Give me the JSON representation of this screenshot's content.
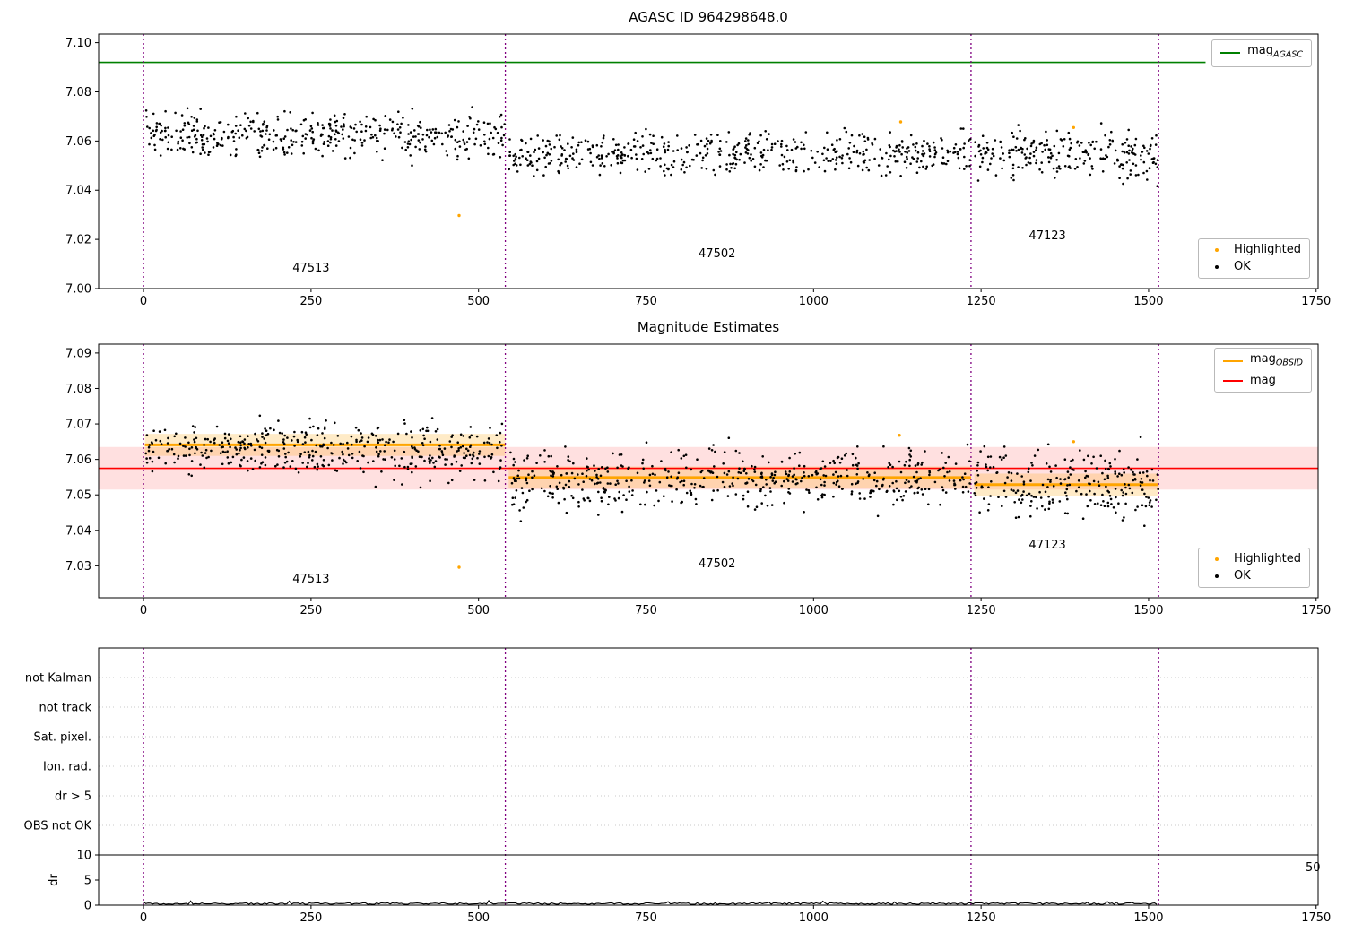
{
  "colors": {
    "ok": "#000000",
    "highlighted": "#ffa500",
    "agasc": "#008000",
    "mag": "#ff0000",
    "obsid": "#ffa500",
    "vline": "#800080",
    "grid": "#c8c8c8",
    "spine": "#000000",
    "background": "#ffffff"
  },
  "chart_data": [
    {
      "type": "scatter",
      "title": "AGASC ID 964298648.0",
      "xlim": [
        -67,
        1753
      ],
      "ylim": [
        7.0,
        7.1035
      ],
      "xticks": [
        0,
        250,
        500,
        750,
        1000,
        1250,
        1500,
        1750
      ],
      "yticks": [
        7.0,
        7.02,
        7.04,
        7.06,
        7.08,
        7.1
      ],
      "ytick_labels": [
        "7.00",
        "7.02",
        "7.04",
        "7.06",
        "7.08",
        "7.10"
      ],
      "agasc_mag": 7.092,
      "agasc_line_x": [
        -67,
        1585
      ],
      "vlines": [
        0,
        540,
        1235,
        1515
      ],
      "series": [
        {
          "obsid": "47513",
          "x0": 2,
          "x1": 540,
          "n": 430,
          "mean": 7.0625,
          "sd": 0.0045,
          "seed": 11,
          "label_x": 250,
          "label_y": 7.007
        },
        {
          "obsid": "47502",
          "x0": 545,
          "x1": 1235,
          "n": 520,
          "mean": 7.0548,
          "sd": 0.004,
          "seed": 22,
          "label_x": 856,
          "label_y": 7.0128
        },
        {
          "obsid": "47123",
          "x0": 1240,
          "x1": 1515,
          "n": 235,
          "mean": 7.0542,
          "sd": 0.0048,
          "seed": 33,
          "label_x": 1349,
          "label_y": 7.02
        }
      ],
      "highlighted": [
        [
          471,
          7.0297
        ],
        [
          1130,
          7.0678
        ],
        [
          1388,
          7.0655
        ]
      ],
      "legend_top": [
        {
          "prefix": "mag",
          "sub": "AGASC"
        }
      ],
      "legend_bottom": [
        {
          "label": "Highlighted"
        },
        {
          "label": "OK"
        }
      ]
    },
    {
      "type": "scatter",
      "title": "Magnitude Estimates",
      "xlim": [
        -67,
        1753
      ],
      "ylim": [
        7.021,
        7.0925
      ],
      "xticks": [
        0,
        250,
        500,
        750,
        1000,
        1250,
        1500,
        1750
      ],
      "yticks": [
        7.03,
        7.04,
        7.05,
        7.06,
        7.07,
        7.08,
        7.09
      ],
      "ytick_labels": [
        "7.03",
        "7.04",
        "7.05",
        "7.06",
        "7.07",
        "7.08",
        "7.09"
      ],
      "mag": 7.0575,
      "mag_band": [
        7.0515,
        7.0635
      ],
      "vlines": [
        0,
        540,
        1235,
        1515
      ],
      "series": [
        {
          "obsid": "47513",
          "x0": 2,
          "x1": 540,
          "n": 430,
          "mean": 7.0628,
          "sd": 0.0038,
          "seed": 41,
          "mag_obsid": 7.0641,
          "band": [
            7.061,
            7.0672
          ],
          "label_x": 250,
          "label_y": 7.0253
        },
        {
          "obsid": "47502",
          "x0": 545,
          "x1": 1235,
          "n": 520,
          "mean": 7.0545,
          "sd": 0.004,
          "seed": 52,
          "mag_obsid": 7.0549,
          "band": [
            7.0518,
            7.058
          ],
          "label_x": 856,
          "label_y": 7.0296
        },
        {
          "obsid": "47123",
          "x0": 1240,
          "x1": 1515,
          "n": 235,
          "mean": 7.0534,
          "sd": 0.0047,
          "seed": 63,
          "mag_obsid": 7.0529,
          "band": [
            7.0498,
            7.056
          ],
          "label_x": 1349,
          "label_y": 7.0349
        }
      ],
      "highlighted": [
        [
          471,
          7.0296
        ],
        [
          1128,
          7.0668
        ],
        [
          1388,
          7.065
        ]
      ],
      "legend_top": [
        {
          "prefix": "mag",
          "sub": "OBSID"
        },
        {
          "label": "mag"
        }
      ],
      "legend_bottom": [
        {
          "label": "Highlighted"
        },
        {
          "label": "OK"
        }
      ]
    },
    {
      "type": "flags",
      "categories": [
        "not Kalman",
        "not track",
        "Sat. pixel.",
        "Ion. rad.",
        "dr > 5",
        "OBS not OK"
      ],
      "xlim": [
        -67,
        1753
      ],
      "xticks": [
        0,
        250,
        500,
        750,
        1000,
        1250,
        1500,
        1750
      ],
      "vlines": [
        0,
        540,
        1235,
        1515
      ],
      "dr": {
        "ylabel": "dr",
        "yticks": [
          0,
          5,
          10
        ],
        "ylim": [
          0,
          10
        ],
        "x0": 0,
        "x1": 1515,
        "base": 0.25,
        "seed": 77
      },
      "right_edge_label": "50"
    }
  ]
}
